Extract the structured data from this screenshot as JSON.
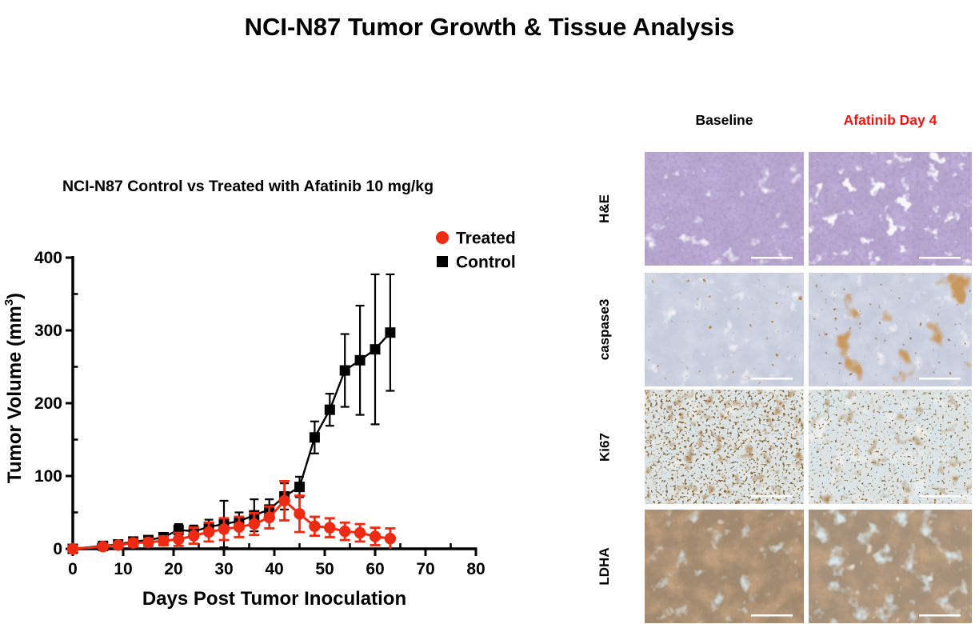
{
  "main_title": "NCI-N87 Tumor Growth & Tissue Analysis",
  "chart_data": {
    "type": "line",
    "title": "NCI-N87 Control vs Treated with Afatinib 10 mg/kg",
    "xlabel": "Days Post Tumor Inoculation",
    "ylabel": "Tumor Volume (mm³)",
    "ylabel_parts": [
      "Tumor Volume (mm",
      "3",
      ")"
    ],
    "xlim": [
      0,
      80
    ],
    "ylim": [
      0,
      400
    ],
    "xticks": [
      0,
      10,
      20,
      30,
      40,
      50,
      60,
      70,
      80
    ],
    "xticks_minor": [
      5,
      15,
      25,
      35,
      45,
      55,
      65,
      75
    ],
    "yticks": [
      0,
      100,
      200,
      300,
      400
    ],
    "yticks_minor": [
      50,
      150,
      250,
      350
    ],
    "grid": false,
    "legend_position": "top-right",
    "x": [
      0,
      6,
      9,
      12,
      15,
      18,
      21,
      24,
      27,
      30,
      33,
      36,
      39,
      42,
      45,
      48,
      51,
      54,
      57,
      60,
      63
    ],
    "series": [
      {
        "name": "Treated",
        "marker": "circle",
        "color": "#ee2b12",
        "values": [
          0,
          3,
          5,
          8,
          9,
          11,
          13,
          18,
          23,
          27,
          30,
          34,
          43,
          66,
          48,
          31,
          29,
          24,
          22,
          17,
          14
        ],
        "errors": [
          2,
          3,
          4,
          5,
          5,
          6,
          9,
          11,
          13,
          15,
          14,
          15,
          15,
          27,
          25,
          13,
          13,
          12,
          12,
          12,
          14
        ]
      },
      {
        "name": "Control",
        "marker": "square",
        "color": "#000000",
        "values": [
          0,
          4,
          6,
          10,
          12,
          16,
          26,
          24,
          30,
          34,
          38,
          46,
          54,
          72,
          85,
          153,
          191,
          245,
          259,
          274,
          297
        ],
        "errors": [
          2,
          2,
          3,
          3,
          4,
          5,
          8,
          8,
          10,
          32,
          12,
          22,
          14,
          18,
          14,
          22,
          22,
          50,
          75,
          103,
          80
        ]
      }
    ]
  },
  "histology": {
    "column_headers": [
      {
        "label": "Baseline",
        "color": "#000000"
      },
      {
        "label": "Afatinib Day 4",
        "color": "#f01313"
      }
    ],
    "rows": [
      {
        "label": "H&E",
        "panels": [
          {
            "base": "#b7a6cb",
            "layers": [
              {
                "f": 0.04,
                "o": 4,
                "s": 10,
                "color": "#8770b0",
                "c": 2.0,
                "d": -0.7
              },
              {
                "f": 0.22,
                "o": 2,
                "s": 11,
                "color": "#60489b",
                "c": 1.5,
                "d": -0.62
              },
              {
                "f": 0.05,
                "o": 3,
                "s": 12,
                "color": "#eceaf2",
                "c": 5.0,
                "d": -3.3
              }
            ]
          },
          {
            "base": "#b7a6cb",
            "layers": [
              {
                "f": 0.04,
                "o": 4,
                "s": 20,
                "color": "#8770b0",
                "c": 2.0,
                "d": -0.7
              },
              {
                "f": 0.2,
                "o": 2,
                "s": 21,
                "color": "#60489b",
                "c": 1.5,
                "d": -0.62
              },
              {
                "f": 0.055,
                "o": 3,
                "s": 22,
                "color": "#f0eef4",
                "c": 6.5,
                "d": -4.0
              }
            ]
          }
        ]
      },
      {
        "label": "caspase3",
        "panels": [
          {
            "base": "#c7ccdc",
            "layers": [
              {
                "f": 0.045,
                "o": 4,
                "s": 30,
                "color": "#aeb6cf",
                "c": 1.8,
                "d": -0.6
              },
              {
                "f": 0.3,
                "o": 2,
                "s": 31,
                "color": "#95a0c0",
                "c": 1.2,
                "d": -0.5
              },
              {
                "f": 0.05,
                "o": 3,
                "s": 32,
                "color": "#e7e5e9",
                "c": 4.5,
                "d": -2.9
              },
              {
                "f": 0.14,
                "o": 2,
                "s": 33,
                "color": "#77390f",
                "c": 10,
                "d": -7.4
              }
            ]
          },
          {
            "base": "#c7ccdc",
            "layers": [
              {
                "f": 0.045,
                "o": 4,
                "s": 40,
                "color": "#aeb6cf",
                "c": 1.8,
                "d": -0.6
              },
              {
                "f": 0.3,
                "o": 2,
                "s": 41,
                "color": "#95a0c0",
                "c": 1.2,
                "d": -0.5
              },
              {
                "f": 0.05,
                "o": 3,
                "s": 42,
                "color": "#e7e5e9",
                "c": 4.5,
                "d": -2.9
              },
              {
                "f": 0.03,
                "o": 3,
                "s": 43,
                "color": "#94501d",
                "c": 6.5,
                "d": -4.2
              },
              {
                "f": 0.16,
                "o": 2,
                "s": 44,
                "color": "#5a280a",
                "c": 7.0,
                "d": -5.1
              }
            ]
          }
        ]
      },
      {
        "label": "Ki67",
        "panels": [
          {
            "base": "#dde2e2",
            "layers": [
              {
                "f": 0.055,
                "o": 3,
                "s": 50,
                "color": "#aecbd9",
                "c": 2.2,
                "d": -0.95
              },
              {
                "f": 0.04,
                "o": 3,
                "s": 51,
                "color": "#eae9e6",
                "c": 3.5,
                "d": -2.1
              },
              {
                "f": 0.3,
                "o": 2,
                "s": 52,
                "color": "#3f1f07",
                "c": 6.0,
                "d": -3.4
              },
              {
                "f": 0.08,
                "o": 2,
                "s": 53,
                "color": "#66330f",
                "c": 3.2,
                "d": -1.9
              }
            ]
          },
          {
            "base": "#dde2e2",
            "layers": [
              {
                "f": 0.055,
                "o": 3,
                "s": 60,
                "color": "#aecbd9",
                "c": 2.5,
                "d": -1.0
              },
              {
                "f": 0.04,
                "o": 3,
                "s": 61,
                "color": "#eae9e6",
                "c": 3.5,
                "d": -2.0
              },
              {
                "f": 0.3,
                "o": 2,
                "s": 62,
                "color": "#3f1f07",
                "c": 6.0,
                "d": -3.7
              },
              {
                "f": 0.07,
                "o": 2,
                "s": 63,
                "color": "#66330f",
                "c": 3.0,
                "d": -1.85
              }
            ]
          }
        ]
      },
      {
        "label": "LDHA",
        "panels": [
          {
            "base": "#9f8970",
            "layers": [
              {
                "f": 0.04,
                "o": 4,
                "s": 70,
                "color": "#8a5c38",
                "c": 2.4,
                "d": -0.9
              },
              {
                "f": 0.26,
                "o": 2,
                "s": 71,
                "color": "#6f4526",
                "c": 1.3,
                "d": -0.55
              },
              {
                "f": 0.05,
                "o": 3,
                "s": 72,
                "color": "#a9c6d2",
                "c": 4.0,
                "d": -2.5
              },
              {
                "f": 0.045,
                "o": 2,
                "s": 73,
                "color": "#ece8e1",
                "c": 8.0,
                "d": -6.1
              }
            ]
          },
          {
            "base": "#a3907b",
            "layers": [
              {
                "f": 0.04,
                "o": 4,
                "s": 80,
                "color": "#8d603c",
                "c": 2.2,
                "d": -0.85
              },
              {
                "f": 0.26,
                "o": 2,
                "s": 81,
                "color": "#74492a",
                "c": 1.2,
                "d": -0.5
              },
              {
                "f": 0.045,
                "o": 3,
                "s": 82,
                "color": "#aecbd6",
                "c": 4.6,
                "d": -2.6
              },
              {
                "f": 0.05,
                "o": 2,
                "s": 83,
                "color": "#ece8e1",
                "c": 7.0,
                "d": -5.3
              }
            ]
          }
        ]
      }
    ]
  }
}
